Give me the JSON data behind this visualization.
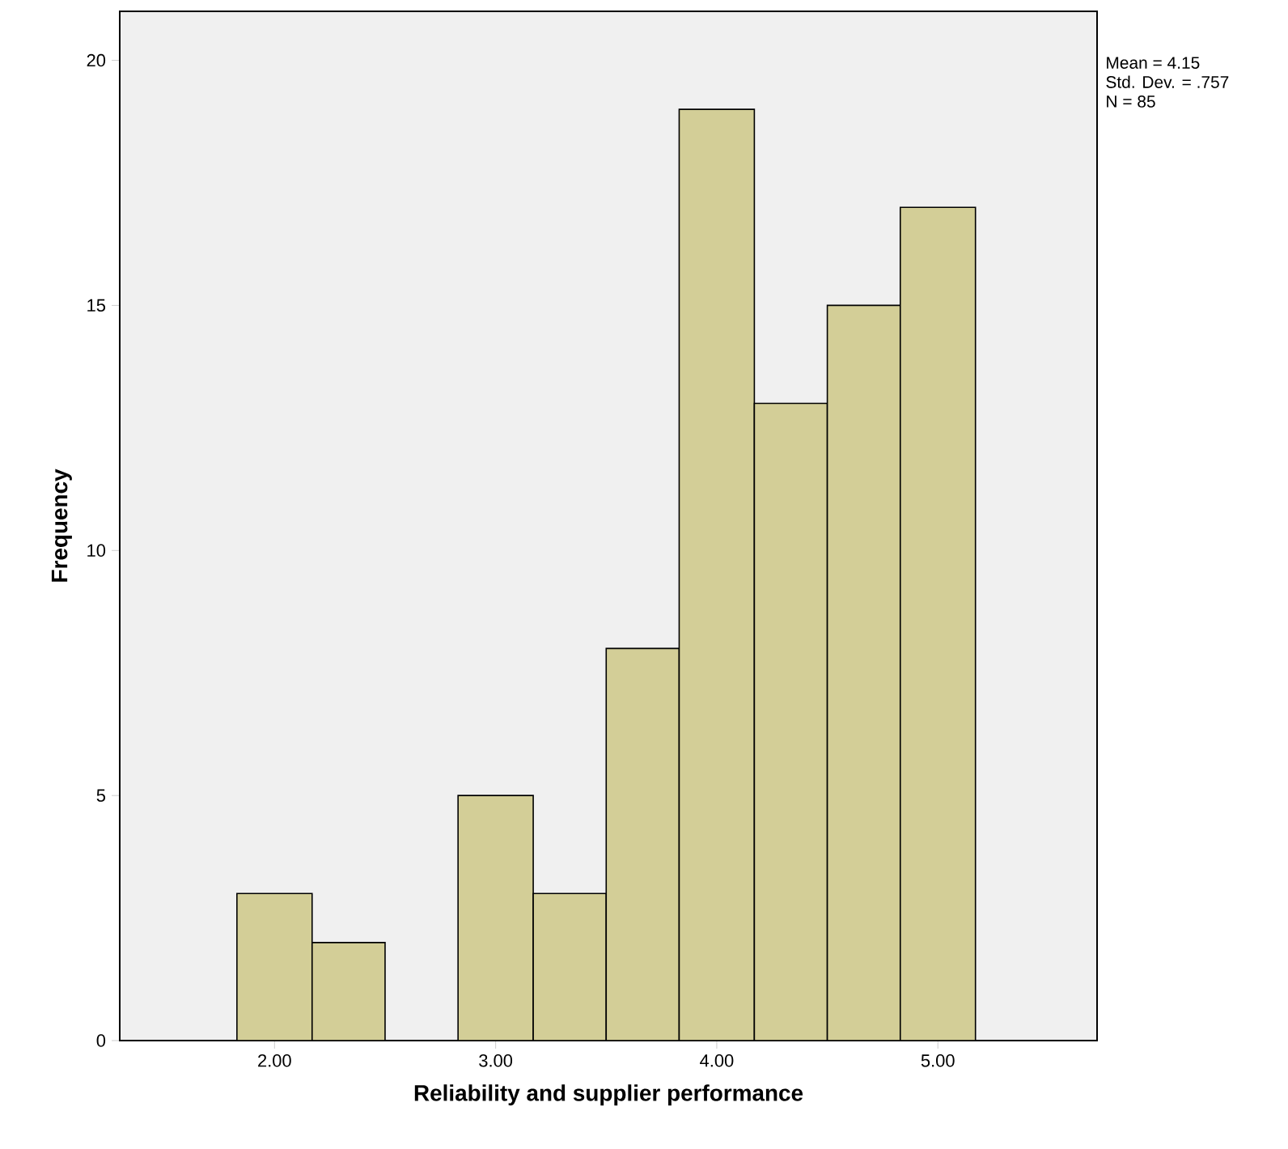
{
  "chart_data": {
    "type": "histogram",
    "xlabel": "Reliability and supplier performance",
    "ylabel": "Frequency",
    "bins": [
      1.83,
      2.17,
      2.5,
      2.83,
      3.17,
      3.5,
      3.83,
      4.17,
      4.5,
      4.83,
      5.17
    ],
    "values": [
      3,
      2,
      0,
      5,
      3,
      8,
      19,
      13,
      15,
      17
    ],
    "color": "#d3ce97",
    "xlim": [
      1.3,
      5.72
    ],
    "ylim": [
      0,
      21
    ],
    "xticks": [
      {
        "value": 2,
        "label": "2.00"
      },
      {
        "value": 3,
        "label": "3.00"
      },
      {
        "value": 4,
        "label": "4.00"
      },
      {
        "value": 5,
        "label": "5.00"
      }
    ],
    "yticks": [
      0,
      5,
      10,
      15,
      20
    ],
    "annotations": [
      "Mean = 4.15",
      "Std. Dev. = .757",
      "N = 85"
    ]
  }
}
